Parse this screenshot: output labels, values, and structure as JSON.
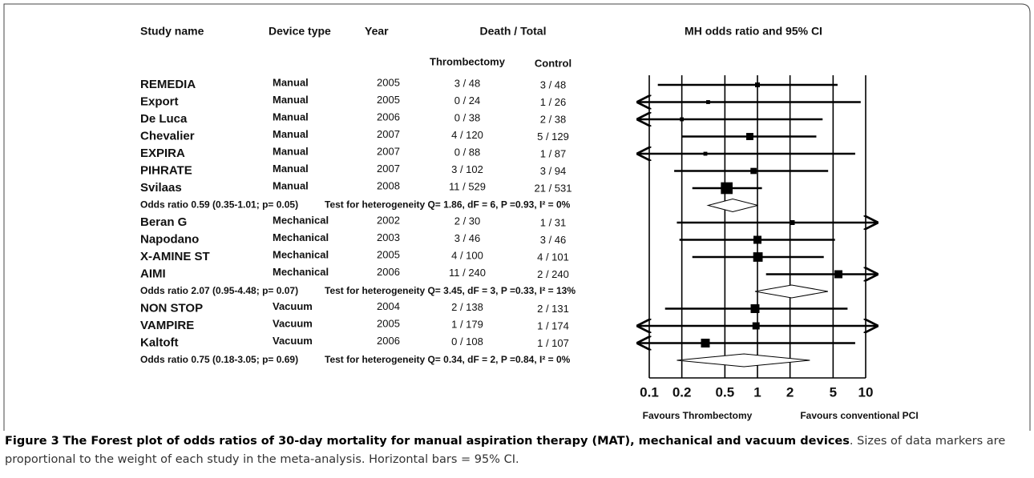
{
  "figure": {
    "headers": {
      "study": "Study name",
      "device": "Device type",
      "year": "Year",
      "death_total": "Death / Total",
      "thrombectomy": "Thrombectomy",
      "control": "Control",
      "plot": "MH odds ratio and 95% CI"
    },
    "groups": [
      {
        "studies": [
          {
            "name": "REMEDIA",
            "device": "Manual",
            "year": "2005",
            "thrombectomy": "3 / 48",
            "control": "3 / 48",
            "or": 1.0,
            "ci": [
              0.12,
              5.5
            ],
            "weight": 1
          },
          {
            "name": "Export",
            "device": "Manual",
            "year": "2005",
            "thrombectomy": "0 / 24",
            "control": "1 / 26",
            "or": 0.35,
            "ci": [
              0.01,
              9
            ],
            "weight": 0.5
          },
          {
            "name": "De Luca",
            "device": "Manual",
            "year": "2006",
            "thrombectomy": "0 / 38",
            "control": "2 / 38",
            "or": 0.2,
            "ci": [
              0.01,
              4
            ],
            "weight": 0.5
          },
          {
            "name": "Chevalier",
            "device": "Manual",
            "year": "2007",
            "thrombectomy": "4 / 120",
            "control": "5 / 129",
            "or": 0.85,
            "ci": [
              0.2,
              3.5
            ],
            "weight": 3
          },
          {
            "name": "EXPIRA",
            "device": "Manual",
            "year": "2007",
            "thrombectomy": "0 / 88",
            "control": "1 / 87",
            "or": 0.33,
            "ci": [
              0.01,
              8
            ],
            "weight": 0.5
          },
          {
            "name": "PIHRATE",
            "device": "Manual",
            "year": "2007",
            "thrombectomy": "3 / 102",
            "control": "3 / 94",
            "or": 0.92,
            "ci": [
              0.17,
              4.5
            ],
            "weight": 2
          },
          {
            "name": "Svilaas",
            "device": "Manual",
            "year": "2008",
            "thrombectomy": "11 / 529",
            "control": "21 / 531",
            "or": 0.52,
            "ci": [
              0.25,
              1.1
            ],
            "weight": 10
          }
        ],
        "summary": {
          "text": "Odds ratio 0.59 (0.35-1.01; p= 0.05)",
          "heterogeneity": "Test for heterogeneity Q= 1.86, dF = 6, P =0.93, I² = 0%",
          "or": 0.59,
          "ci": [
            0.35,
            1.01
          ]
        }
      },
      {
        "studies": [
          {
            "name": "Beran G",
            "device": "Mechanical",
            "year": "2002",
            "thrombectomy": "2 / 30",
            "control": "1 / 31",
            "or": 2.1,
            "ci": [
              0.18,
              25
            ],
            "weight": 1
          },
          {
            "name": "Napodano",
            "device": "Mechanical",
            "year": "2003",
            "thrombectomy": "3 / 46",
            "control": "3 / 46",
            "or": 1.0,
            "ci": [
              0.19,
              5.2
            ],
            "weight": 4
          },
          {
            "name": "X-AMINE ST",
            "device": "Mechanical",
            "year": "2005",
            "thrombectomy": "4 / 100",
            "control": "4 / 101",
            "or": 1.01,
            "ci": [
              0.25,
              4.1
            ],
            "weight": 6
          },
          {
            "name": "AIMI",
            "device": "Mechanical",
            "year": "2006",
            "thrombectomy": "11 / 240",
            "control": "2 / 240",
            "or": 5.6,
            "ci": [
              1.2,
              25
            ],
            "weight": 4
          }
        ],
        "summary": {
          "text": "Odds ratio 2.07 (0.95-4.48; p= 0.07)",
          "heterogeneity": "Test for heterogeneity Q= 3.45, dF = 3, P =0.33, I² = 13%",
          "or": 2.07,
          "ci": [
            0.95,
            4.48
          ]
        }
      },
      {
        "studies": [
          {
            "name": "NON STOP",
            "device": "Vacuum",
            "year": "2004",
            "thrombectomy": "2 / 138",
            "control": "2 / 131",
            "or": 0.95,
            "ci": [
              0.14,
              6.8
            ],
            "weight": 5
          },
          {
            "name": "VAMPIRE",
            "device": "Vacuum",
            "year": "2005",
            "thrombectomy": "1 / 179",
            "control": "1 / 174",
            "or": 0.97,
            "ci": [
              0.01,
              25
            ],
            "weight": 3
          },
          {
            "name": "Kaltoft",
            "device": "Vacuum",
            "year": "2006",
            "thrombectomy": "0 / 108",
            "control": "1 / 107",
            "or": 0.33,
            "ci": [
              0.01,
              8
            ],
            "weight": 5
          }
        ],
        "summary": {
          "text": "Odds ratio 0.75 (0.18-3.05; p= 0.69)",
          "heterogeneity": "Test for heterogeneity Q= 0.34, dF = 2, P =0.84, I² = 0%",
          "or": 0.75,
          "ci": [
            0.18,
            3.05
          ]
        }
      }
    ],
    "xlim": [
      0.1,
      10
    ],
    "xticks": [
      0.1,
      0.2,
      0.5,
      1,
      2,
      5,
      10
    ],
    "log": true,
    "favours_left": "Favours Thrombectomy",
    "favours_right": "Favours conventional PCI"
  },
  "caption": {
    "label": "Figure 3",
    "title": "The Forest plot of odds ratios of 30-day mortality for manual aspiration therapy (MAT), mechanical and vacuum devices",
    "text": ". Sizes of data markers are proportional to the weight of each study in the meta-analysis. Horizontal bars = 95% CI."
  }
}
